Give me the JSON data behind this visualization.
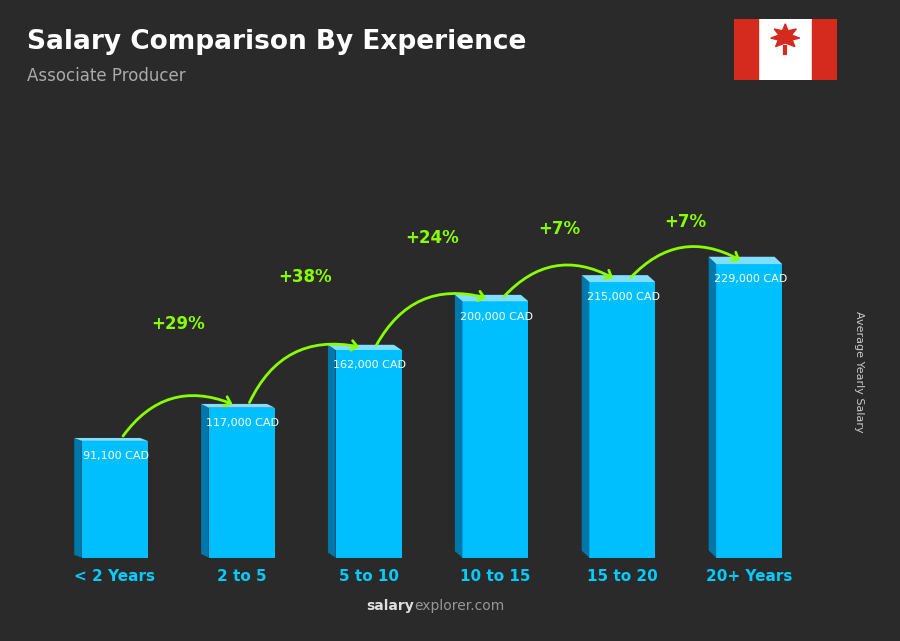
{
  "title": "Salary Comparison By Experience",
  "subtitle": "Associate Producer",
  "categories": [
    "< 2 Years",
    "2 to 5",
    "5 to 10",
    "10 to 15",
    "15 to 20",
    "20+ Years"
  ],
  "values": [
    91100,
    117000,
    162000,
    200000,
    215000,
    229000
  ],
  "salary_labels": [
    "91,100 CAD",
    "117,000 CAD",
    "162,000 CAD",
    "200,000 CAD",
    "215,000 CAD",
    "229,000 CAD"
  ],
  "pct_changes": [
    null,
    "+29%",
    "+38%",
    "+24%",
    "+7%",
    "+7%"
  ],
  "bar_color_main": "#00BFFF",
  "bar_color_dark": "#0077AA",
  "bar_color_light": "#80DFFF",
  "bg_color": "#2a2a2a",
  "title_color": "#ffffff",
  "subtitle_color": "#aaaaaa",
  "label_color": "#ffffff",
  "pct_color": "#88FF00",
  "xlabel_color": "#00CCFF",
  "ylabel_text": "Average Yearly Salary",
  "watermark_left": "salary",
  "watermark_right": "explorer.com",
  "ylim": [
    0,
    300000
  ],
  "figsize": [
    9.0,
    6.41
  ],
  "dpi": 100
}
